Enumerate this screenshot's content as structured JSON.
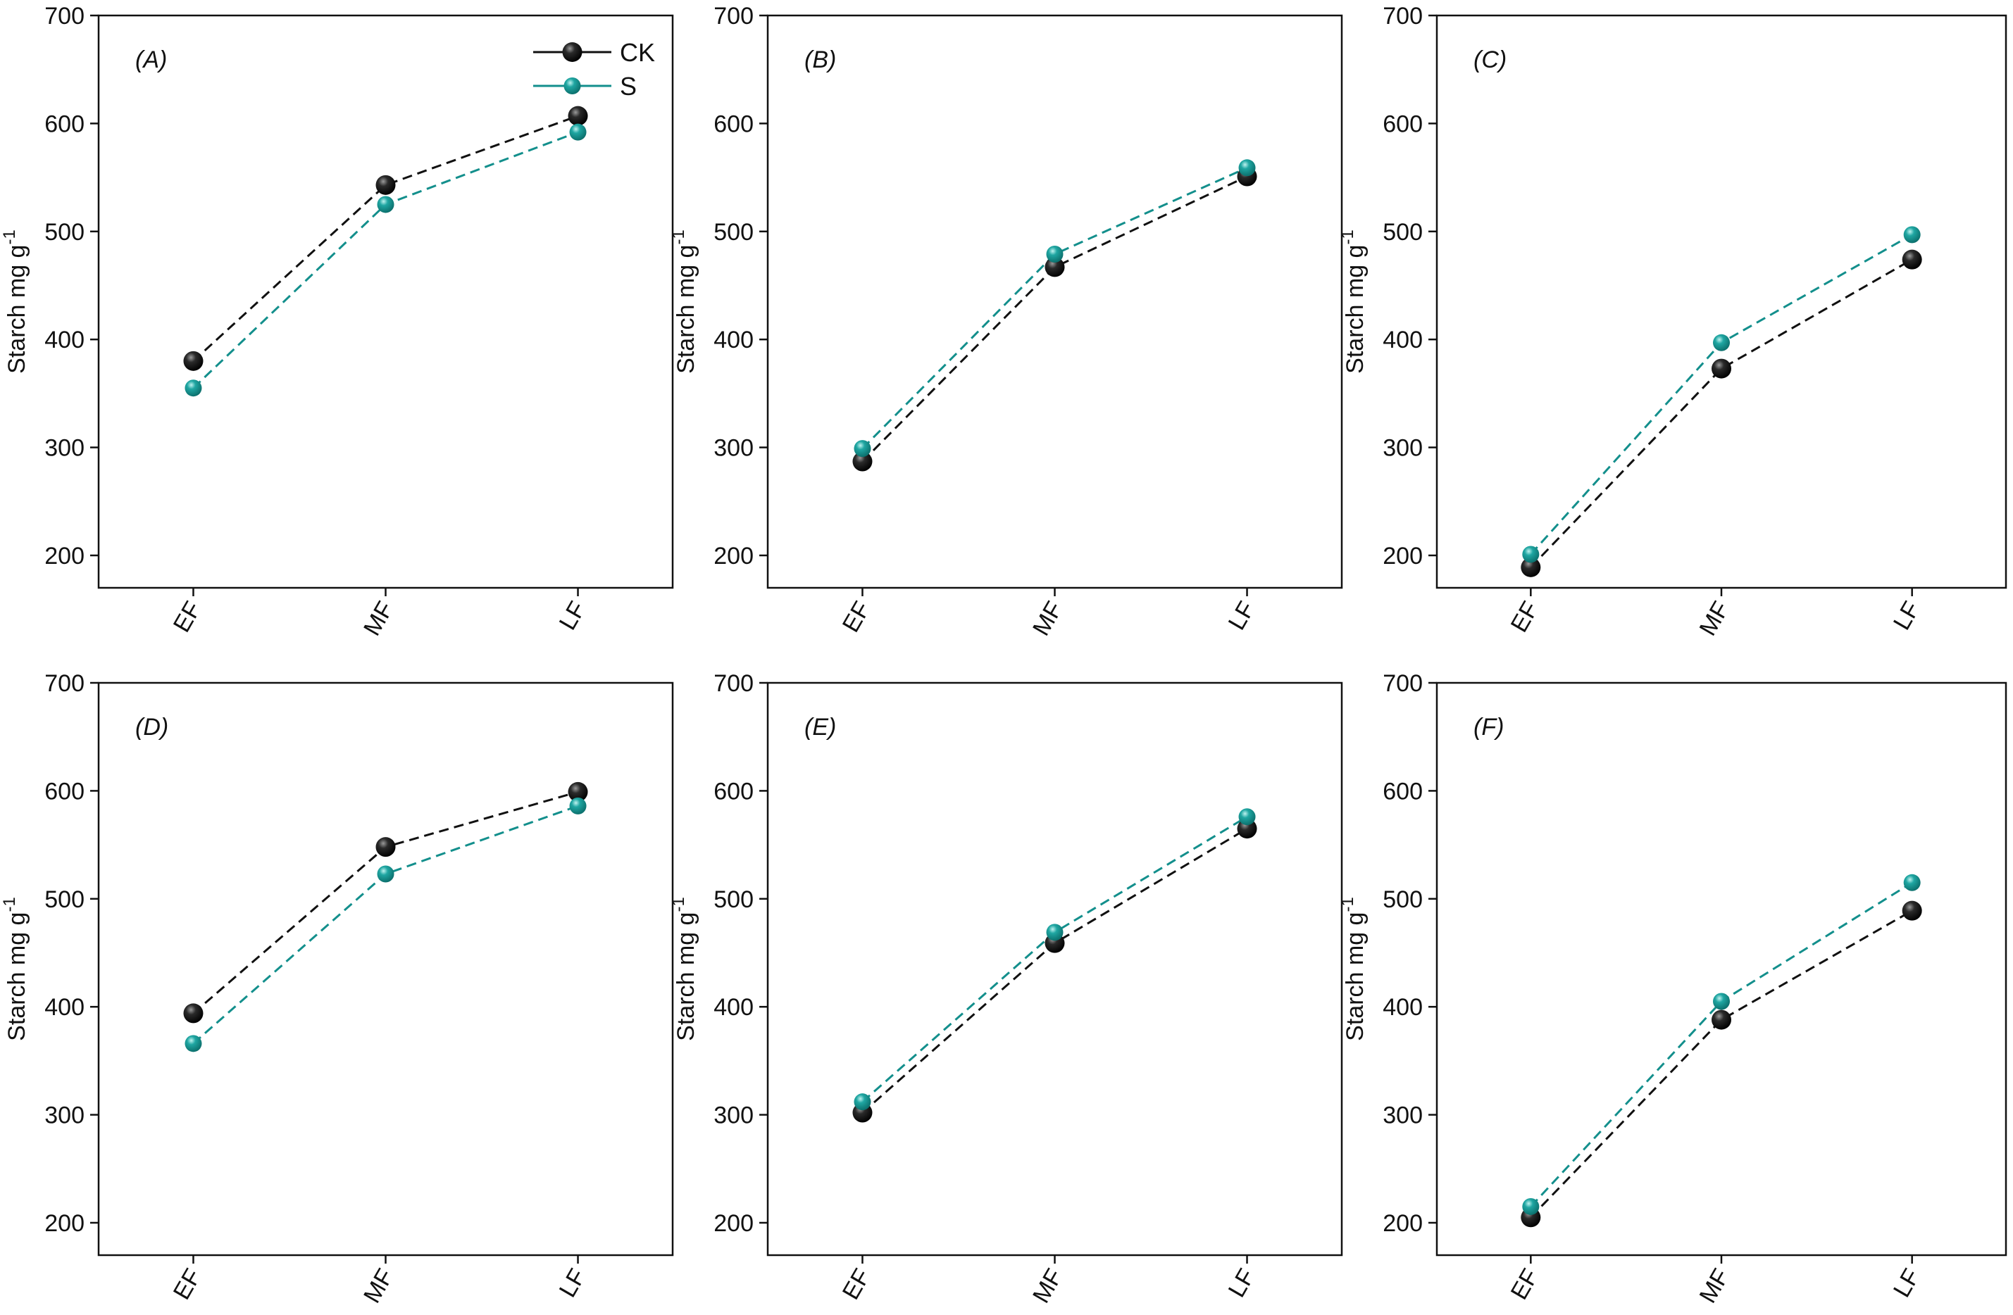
{
  "chart_data": [
    {
      "type": "line",
      "panel_label": "(A)",
      "ylabel": "Starch mg g",
      "ylabel_sup": "-1",
      "categories": [
        "EF",
        "MF",
        "LF"
      ],
      "ylim": [
        170,
        700
      ],
      "yticks": [
        200,
        300,
        400,
        500,
        600,
        700
      ],
      "legend": [
        "CK",
        "S"
      ],
      "series": [
        {
          "name": "CK",
          "values": [
            380,
            543,
            607
          ]
        },
        {
          "name": "S",
          "values": [
            355,
            525,
            592
          ]
        }
      ]
    },
    {
      "type": "line",
      "panel_label": "(B)",
      "ylabel": "Starch mg g",
      "ylabel_sup": "-1",
      "categories": [
        "EF",
        "MF",
        "LF"
      ],
      "ylim": [
        170,
        700
      ],
      "yticks": [
        200,
        300,
        400,
        500,
        600,
        700
      ],
      "series": [
        {
          "name": "CK",
          "values": [
            287,
            467,
            551
          ]
        },
        {
          "name": "S",
          "values": [
            299,
            479,
            559
          ]
        }
      ]
    },
    {
      "type": "line",
      "panel_label": "(C)",
      "ylabel": "Starch mg g",
      "ylabel_sup": "-1",
      "categories": [
        "EF",
        "MF",
        "LF"
      ],
      "ylim": [
        170,
        700
      ],
      "yticks": [
        200,
        300,
        400,
        500,
        600,
        700
      ],
      "series": [
        {
          "name": "CK",
          "values": [
            189,
            373,
            474
          ]
        },
        {
          "name": "S",
          "values": [
            201,
            397,
            497
          ]
        }
      ]
    },
    {
      "type": "line",
      "panel_label": "(D)",
      "ylabel": "Starch mg g",
      "ylabel_sup": "-1",
      "categories": [
        "EF",
        "MF",
        "LF"
      ],
      "ylim": [
        170,
        700
      ],
      "yticks": [
        200,
        300,
        400,
        500,
        600,
        700
      ],
      "series": [
        {
          "name": "CK",
          "values": [
            394,
            548,
            599
          ]
        },
        {
          "name": "S",
          "values": [
            366,
            523,
            586
          ]
        }
      ]
    },
    {
      "type": "line",
      "panel_label": "(E)",
      "ylabel": "Starch mg g",
      "ylabel_sup": "-1",
      "categories": [
        "EF",
        "MF",
        "LF"
      ],
      "ylim": [
        170,
        700
      ],
      "yticks": [
        200,
        300,
        400,
        500,
        600,
        700
      ],
      "series": [
        {
          "name": "CK",
          "values": [
            302,
            459,
            565
          ]
        },
        {
          "name": "S",
          "values": [
            312,
            469,
            576
          ]
        }
      ]
    },
    {
      "type": "line",
      "panel_label": "(F)",
      "ylabel": "Starch mg g",
      "ylabel_sup": "-1",
      "categories": [
        "EF",
        "MF",
        "LF"
      ],
      "ylim": [
        170,
        700
      ],
      "yticks": [
        200,
        300,
        400,
        500,
        600,
        700
      ],
      "series": [
        {
          "name": "CK",
          "values": [
            205,
            388,
            489
          ]
        },
        {
          "name": "S",
          "values": [
            215,
            405,
            515
          ]
        }
      ]
    }
  ],
  "colors": {
    "CK": "#111111",
    "S": "#138f8c"
  }
}
